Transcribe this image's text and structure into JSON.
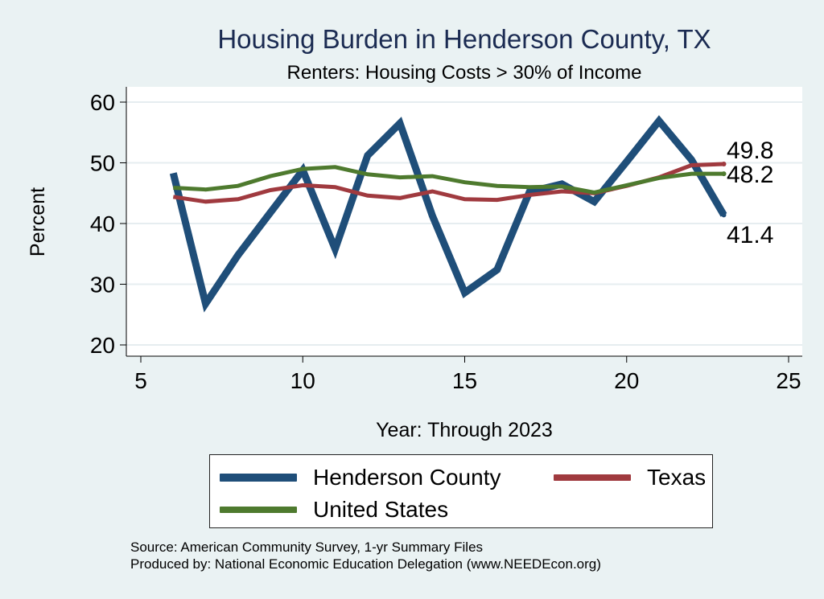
{
  "chart_data": {
    "type": "line",
    "title": "Housing Burden in Henderson County, TX",
    "subtitle": "Renters: Housing Costs > 30% of Income",
    "xlabel": "Year: Through 2023",
    "ylabel": "Percent",
    "xlim": [
      5,
      25
    ],
    "ylim": [
      20,
      60
    ],
    "xticks": [
      5,
      10,
      15,
      20,
      25
    ],
    "yticks": [
      20,
      30,
      40,
      50,
      60
    ],
    "grid": "horizontal",
    "series": [
      {
        "name": "Henderson County",
        "color": "#1f4e79",
        "x": [
          6,
          7,
          8,
          9,
          10,
          11,
          12,
          13,
          14,
          15,
          16,
          17,
          18,
          19,
          20,
          21,
          22,
          23
        ],
        "y": [
          48.3,
          26.8,
          34.8,
          41.8,
          48.8,
          35.8,
          51.2,
          56.5,
          41.3,
          28.6,
          32.4,
          45.2,
          46.5,
          43.6,
          50.2,
          56.9,
          50.5,
          41.4
        ]
      },
      {
        "name": "Texas",
        "color": "#a03a3f",
        "x": [
          6,
          7,
          8,
          9,
          10,
          11,
          12,
          13,
          14,
          15,
          16,
          17,
          18,
          19,
          20,
          21,
          22,
          23
        ],
        "y": [
          44.4,
          43.6,
          44.0,
          45.5,
          46.3,
          46.0,
          44.6,
          44.2,
          45.3,
          44.0,
          43.9,
          44.7,
          45.3,
          45.0,
          46.2,
          47.6,
          49.6,
          49.8
        ]
      },
      {
        "name": "United States",
        "color": "#4e7a2e",
        "x": [
          6,
          7,
          8,
          9,
          10,
          11,
          12,
          13,
          14,
          15,
          16,
          17,
          18,
          19,
          20,
          21,
          22,
          23
        ],
        "y": [
          45.9,
          45.6,
          46.2,
          47.8,
          49.0,
          49.3,
          48.1,
          47.6,
          47.8,
          46.8,
          46.2,
          46.0,
          46.1,
          45.1,
          46.3,
          47.5,
          48.2,
          48.2
        ]
      }
    ],
    "annotations": [
      {
        "text": "49.8",
        "series": "Texas",
        "x": 23,
        "y": 49.8
      },
      {
        "text": "48.2",
        "series": "United States",
        "x": 23,
        "y": 48.2
      },
      {
        "text": "41.4",
        "series": "Henderson County",
        "x": 23,
        "y": 41.4
      }
    ],
    "legend_position": "bottom"
  },
  "legend": {
    "items": [
      "Henderson County",
      "Texas",
      "United States"
    ]
  },
  "footer": {
    "source": "Source: American Community Survey, 1-yr Summary Files",
    "producer": "Produced by: National Economic Education Delegation (www.NEEDEcon.org)"
  }
}
